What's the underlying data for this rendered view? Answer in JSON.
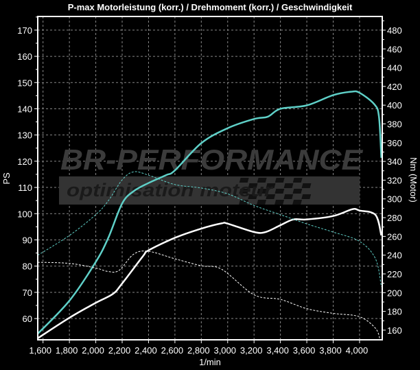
{
  "chart_data": {
    "type": "line",
    "title": "P-max Motorleistung (korr.) / Drehmoment (korr.) / Geschwindigkeit",
    "xlabel": "1/min",
    "ylabel": "PS",
    "ylabel_right": "Nm (Motor)",
    "xlim": [
      1560,
      4172
    ],
    "ylim": [
      51.9,
      175.2
    ],
    "ylim_right": [
      149.7,
      494.6
    ],
    "x_ticks": [
      1600,
      1800,
      2000,
      2200,
      2400,
      2600,
      2800,
      3000,
      3200,
      3400,
      3600,
      3800,
      4000
    ],
    "x_tick_labels": [
      "1,600",
      "1,800",
      "2,000",
      "2,200",
      "2,400",
      "2,600",
      "2,800",
      "3,000",
      "3,200",
      "3,400",
      "3,600",
      "3,800",
      "4,000"
    ],
    "y_ticks": [
      60,
      70,
      80,
      90,
      100,
      110,
      120,
      130,
      140,
      150,
      160,
      170
    ],
    "y_ticks_right": [
      160,
      180,
      200,
      220,
      240,
      260,
      280,
      300,
      320,
      340,
      360,
      380,
      400,
      420,
      440,
      460,
      480
    ],
    "grid": true,
    "watermark": {
      "line1": "BR-PERFORMANCE",
      "line2": "optimisation moteur"
    },
    "series": [
      {
        "axis": "left",
        "color": "#5fd0c8",
        "style": "solid",
        "x": [
          1560,
          1800,
          2000,
          2095,
          2200,
          2288,
          2400,
          2533,
          2600,
          2800,
          3000,
          3200,
          3305,
          3400,
          3600,
          3800,
          3937,
          4000,
          4112,
          4147,
          4165
        ],
        "y": [
          54.2,
          66.8,
          81.6,
          90.8,
          103.9,
          108.6,
          111.7,
          114.7,
          116.5,
          126.9,
          132.6,
          136.1,
          137,
          140,
          141.3,
          145.2,
          146.5,
          146.1,
          141.7,
          137,
          121.3
        ]
      },
      {
        "axis": "left",
        "color": "#ffffff",
        "style": "solid",
        "x": [
          1560,
          1800,
          2000,
          2130,
          2200,
          2358,
          2400,
          2600,
          2800,
          2954,
          3000,
          3200,
          3288,
          3400,
          3498,
          3600,
          3800,
          3946,
          4000,
          4121,
          4165
        ],
        "y": [
          52.5,
          60.3,
          66,
          69.4,
          73.4,
          83.8,
          86,
          90.8,
          94.3,
          96.3,
          96.2,
          93,
          93,
          95.6,
          97.8,
          97.8,
          99.1,
          101.7,
          101.2,
          99.5,
          91.7
        ]
      },
      {
        "axis": "right",
        "color": "#5fd0c8",
        "style": "dashed",
        "x": [
          1560,
          1800,
          2000,
          2095,
          2200,
          2288,
          2400,
          2600,
          2800,
          3000,
          3200,
          3400,
          3600,
          3800,
          4000,
          4121,
          4165
        ],
        "y": [
          239.9,
          261,
          283.2,
          298,
          320.3,
          328.9,
          325.3,
          315.3,
          311.6,
          305.4,
          293,
          283.2,
          273.3,
          264.6,
          254.7,
          236.1,
          206.4
        ]
      },
      {
        "axis": "right",
        "color": "#ffffff",
        "style": "dashed",
        "x": [
          1560,
          1800,
          2000,
          2095,
          2177,
          2288,
          2400,
          2600,
          2800,
          2954,
          3200,
          3400,
          3600,
          3800,
          4000,
          4121,
          4156
        ],
        "y": [
          232.4,
          231.2,
          226.2,
          222.5,
          223.8,
          241.1,
          244.1,
          236.1,
          228.7,
          225,
          197.7,
          192.8,
          182.9,
          177.9,
          174.3,
          161.9,
          149.5
        ]
      }
    ]
  }
}
